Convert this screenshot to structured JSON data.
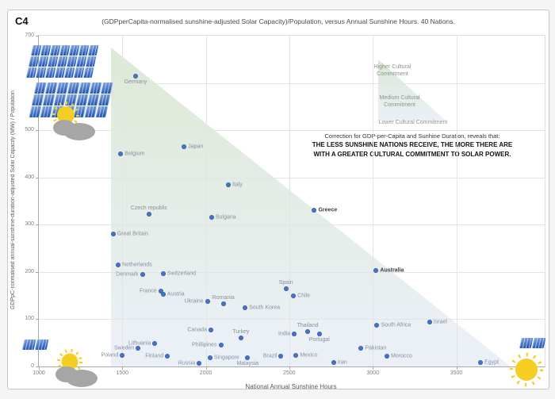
{
  "header": {
    "tag": "C4",
    "title": "(GDPperCapita-normalised sunshine-adjusted Solar Capacity)/Population, versus Annual Sunshine Hours. 40 Nations."
  },
  "axes": {
    "x": {
      "label": "National Annual Sunshine Hours",
      "ticks": [
        1000,
        1500,
        2000,
        2500,
        3000,
        3500
      ],
      "min": 1000,
      "max": 4030
    },
    "y": {
      "label": "GDPpC-normalised annual-sunshine-duration-adjusted Solar Capacity (MW) / Population",
      "ticks": [
        0,
        100,
        200,
        300,
        400,
        500,
        700
      ],
      "gridline_values": [
        100,
        200,
        300,
        400,
        500,
        600,
        700
      ],
      "min": 0,
      "max": 700
    }
  },
  "legend": {
    "higher": "Higher Cultural Commitment",
    "medium": "Medium Cultural Commitment",
    "lower": "Lower Cultural Commitment"
  },
  "annotation": {
    "line1": "Correction for GDP-per-Capita and Sunhine Duration, reveals that:",
    "line2": "THE LESS SUNSHINE NATIONS RECEIVE, THE MORE THERE ARE",
    "line3": "WITH A GREATER CULTURAL COMMITMENT TO SOLAR POWER."
  },
  "colors": {
    "dot": "#4472c4",
    "label": "#87919f",
    "grid": "#e4e4e4",
    "triangle_top": "#d7e5cf",
    "triangle_bottom": "#e8eef7",
    "panel1": "#85abe4",
    "panel2": "#2e5fb8",
    "sun": "#f4ce23",
    "cloud": "#a6a6a6"
  },
  "icons": [
    "solar-panel-array-icon",
    "sun-behind-cloud-icon",
    "solar-panel-pair-icon",
    "sun-icon"
  ],
  "chart_data": {
    "type": "scatter",
    "title": "(GDPperCapita-normalised sunshine-adjusted Solar Capacity)/Population, versus Annual Sunshine Hours. 40 Nations.",
    "xlabel": "National Annual Sunshine Hours",
    "ylabel": "GDPpC-normalised annual-sunshine-duration-adjusted Solar Capacity (MW) / Population",
    "xlim": [
      1000,
      4030
    ],
    "ylim": [
      0,
      700
    ],
    "grid": true,
    "points": [
      {
        "name": "Germany",
        "x": 1580,
        "y": 615,
        "label": "below"
      },
      {
        "name": "Japan",
        "x": 1870,
        "y": 465,
        "label": "right"
      },
      {
        "name": "Belgium",
        "x": 1490,
        "y": 450,
        "label": "right"
      },
      {
        "name": "Italy",
        "x": 2135,
        "y": 385,
        "label": "right"
      },
      {
        "name": "Czech republic",
        "x": 1660,
        "y": 322,
        "label": "above"
      },
      {
        "name": "Bulgaria",
        "x": 2035,
        "y": 315,
        "label": "right"
      },
      {
        "name": "Greece",
        "x": 2650,
        "y": 330,
        "label": "right",
        "emph": true
      },
      {
        "name": "Great Britain",
        "x": 1445,
        "y": 280,
        "label": "right"
      },
      {
        "name": "Netherlands",
        "x": 1475,
        "y": 215,
        "label": "right"
      },
      {
        "name": "Australia",
        "x": 3020,
        "y": 203,
        "label": "right",
        "emph": true
      },
      {
        "name": "Switzerland",
        "x": 1745,
        "y": 197,
        "label": "right"
      },
      {
        "name": "Denmark",
        "x": 1620,
        "y": 194,
        "label": "left"
      },
      {
        "name": "Spain",
        "x": 2480,
        "y": 164,
        "label": "above"
      },
      {
        "name": "France",
        "x": 1730,
        "y": 159,
        "label": "left"
      },
      {
        "name": "Austria",
        "x": 1745,
        "y": 152,
        "label": "right"
      },
      {
        "name": "Chile",
        "x": 2525,
        "y": 150,
        "label": "right"
      },
      {
        "name": "Ukraine",
        "x": 2010,
        "y": 137,
        "label": "left"
      },
      {
        "name": "Romania",
        "x": 2105,
        "y": 132,
        "label": "above"
      },
      {
        "name": "South Korea",
        "x": 2235,
        "y": 125,
        "label": "right"
      },
      {
        "name": "Israel",
        "x": 3340,
        "y": 94,
        "label": "right"
      },
      {
        "name": "South Africa",
        "x": 3025,
        "y": 87,
        "label": "right"
      },
      {
        "name": "Canada",
        "x": 2030,
        "y": 78,
        "label": "left"
      },
      {
        "name": "Thailand",
        "x": 2610,
        "y": 74,
        "label": "above"
      },
      {
        "name": "India",
        "x": 2530,
        "y": 69,
        "label": "left"
      },
      {
        "name": "Portugal",
        "x": 2680,
        "y": 68,
        "label": "below"
      },
      {
        "name": "Turkey",
        "x": 2210,
        "y": 61,
        "label": "above"
      },
      {
        "name": "Lithuania",
        "x": 1695,
        "y": 49,
        "label": "left"
      },
      {
        "name": "Phillipines",
        "x": 2090,
        "y": 46,
        "label": "left"
      },
      {
        "name": "Pakistan",
        "x": 2930,
        "y": 39,
        "label": "right"
      },
      {
        "name": "Sweden",
        "x": 1595,
        "y": 39,
        "label": "left"
      },
      {
        "name": "Poland",
        "x": 1500,
        "y": 23,
        "label": "left"
      },
      {
        "name": "Mexico",
        "x": 2540,
        "y": 23,
        "label": "right"
      },
      {
        "name": "Finland",
        "x": 1770,
        "y": 21,
        "label": "left"
      },
      {
        "name": "Brazil",
        "x": 2450,
        "y": 21,
        "label": "left"
      },
      {
        "name": "Morocco",
        "x": 3085,
        "y": 21,
        "label": "right"
      },
      {
        "name": "Singapore",
        "x": 2025,
        "y": 18,
        "label": "right"
      },
      {
        "name": "Malaysia",
        "x": 2250,
        "y": 18,
        "label": "below"
      },
      {
        "name": "Iran",
        "x": 2765,
        "y": 8,
        "label": "right"
      },
      {
        "name": "Egypt",
        "x": 3645,
        "y": 8,
        "label": "right"
      },
      {
        "name": "Russia",
        "x": 1960,
        "y": 6,
        "label": "left"
      }
    ]
  }
}
